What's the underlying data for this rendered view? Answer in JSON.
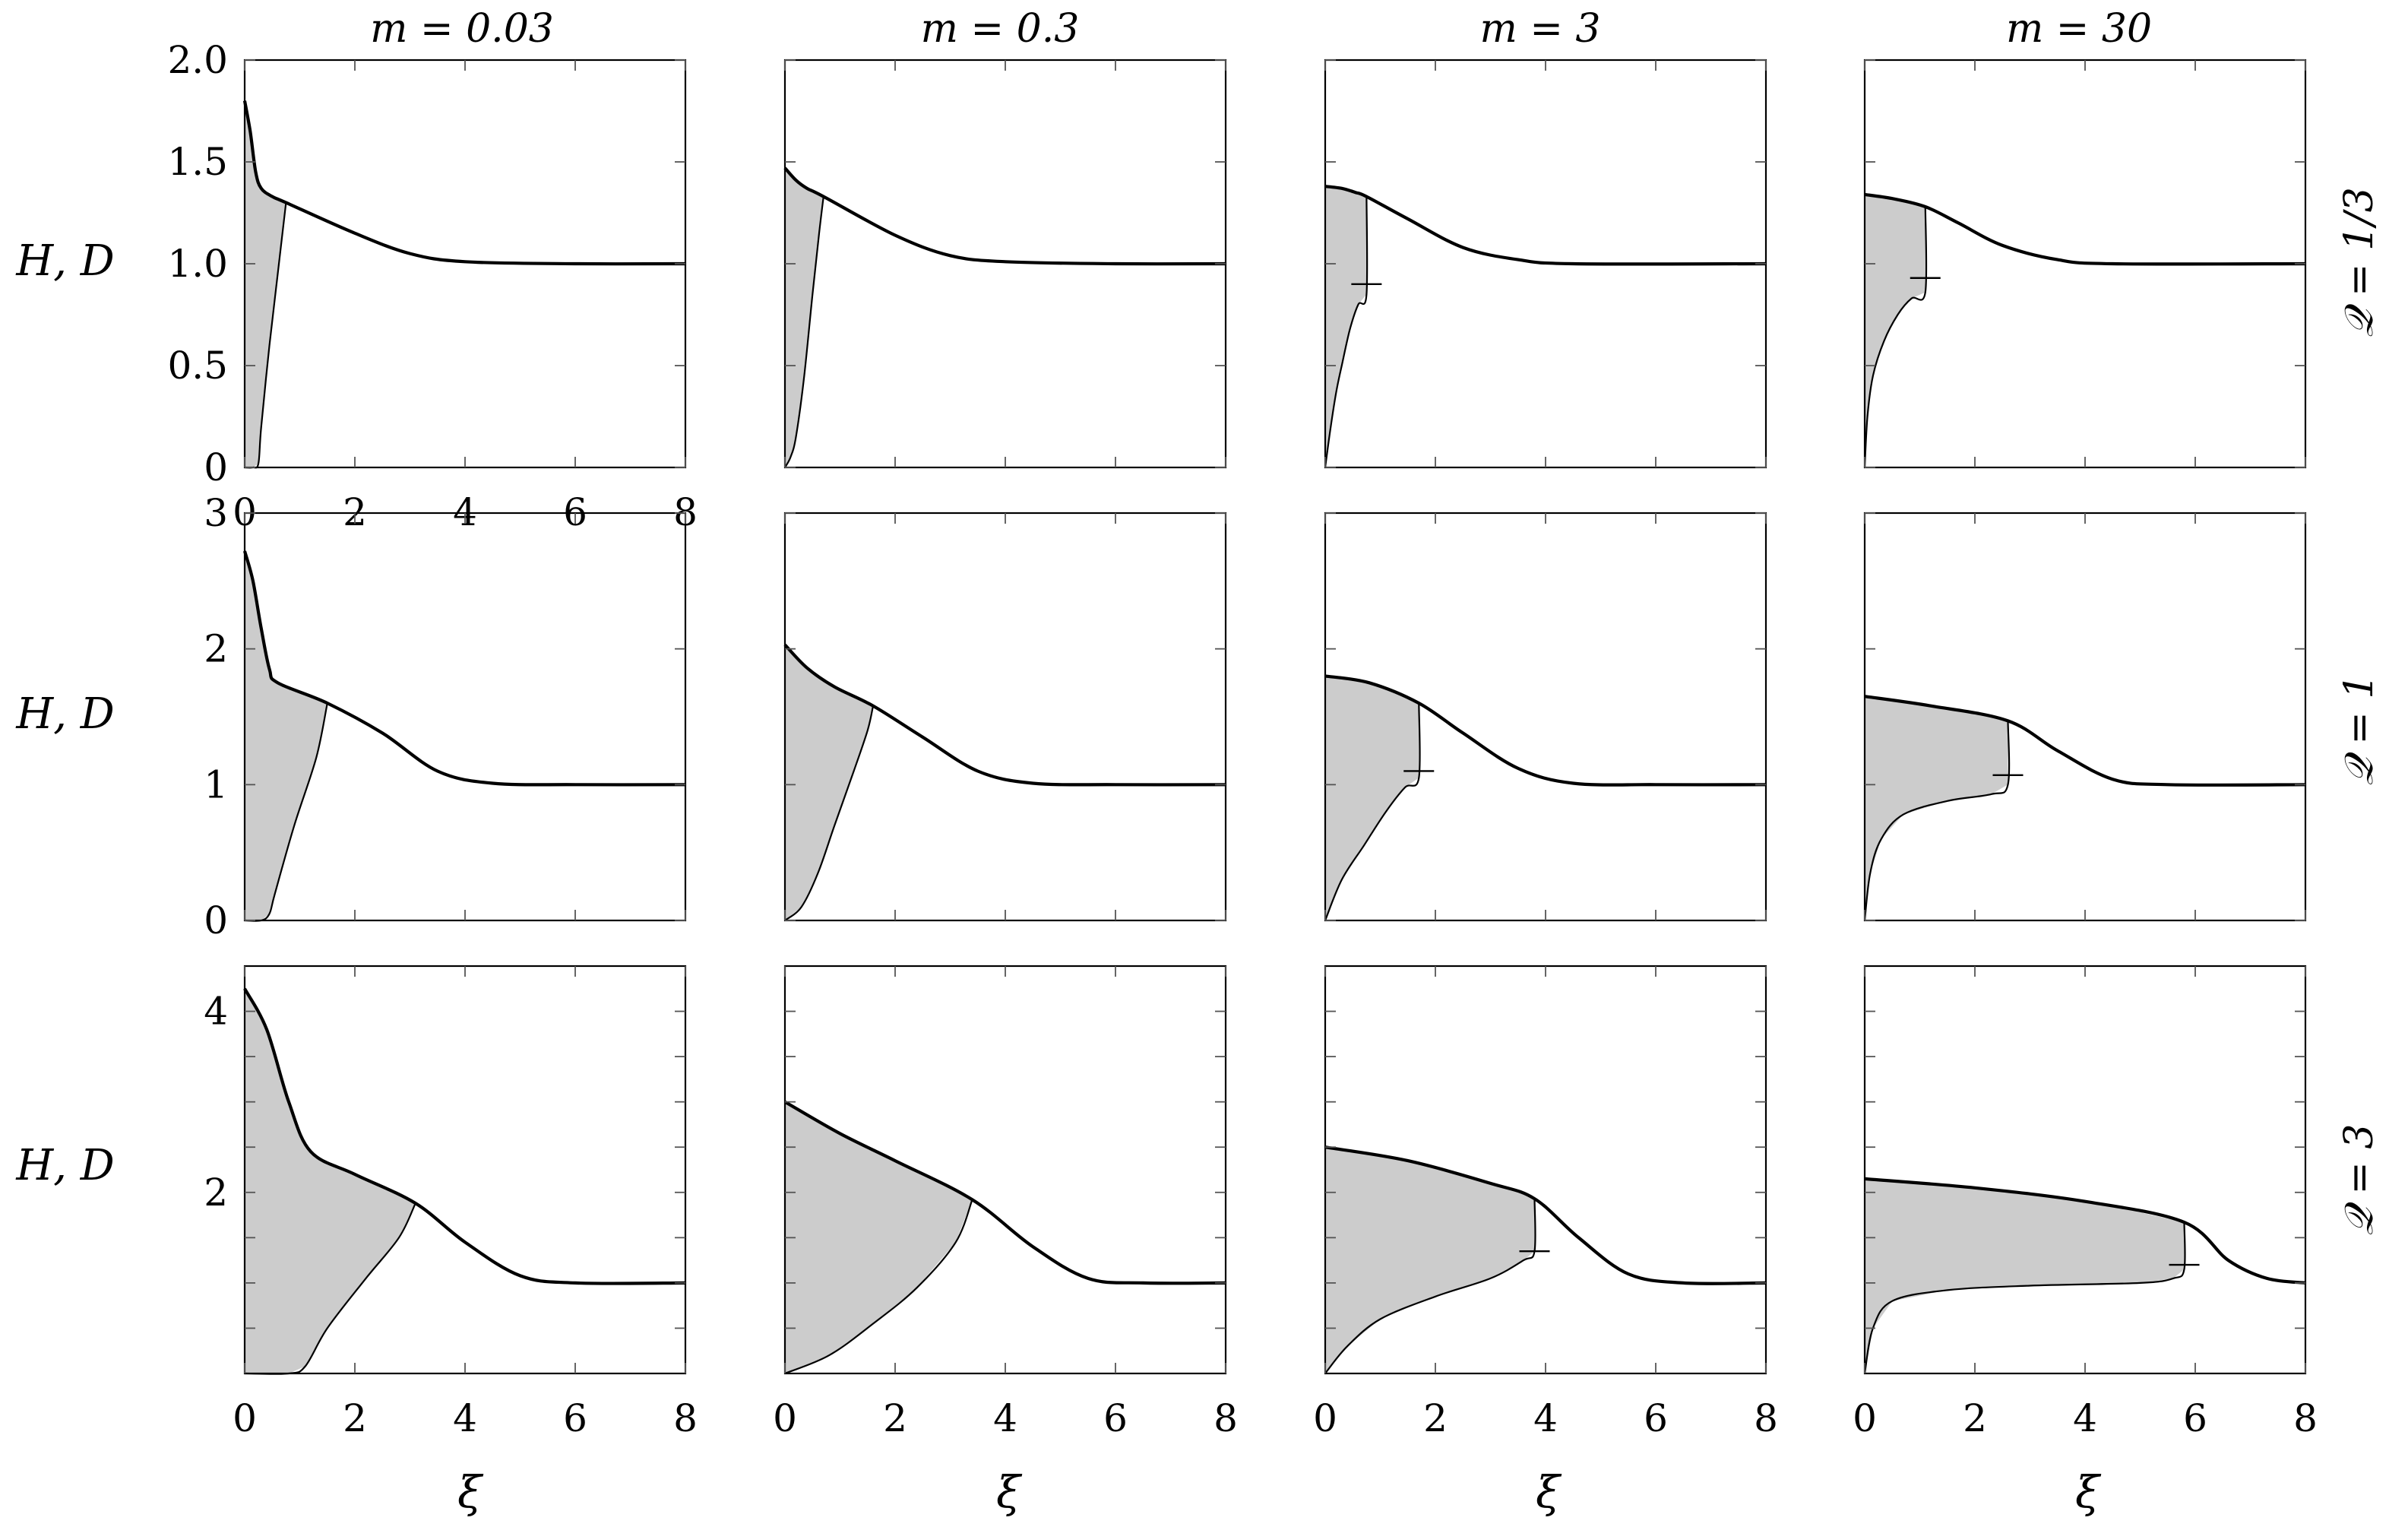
{
  "figure": {
    "column_titles": [
      "m = 0.03",
      "m = 0.3",
      "m = 3",
      "m = 30"
    ],
    "row_labels": [
      "𝒬 = 1/3",
      "𝒬 = 1",
      "𝒬 = 3"
    ],
    "y_axis_label": "H, D",
    "x_axis_label": "ξ",
    "colors": {
      "line": "#000000",
      "fill": "#cccccc",
      "frame": "#000000"
    }
  },
  "chart_data": [
    {
      "type": "area",
      "m": "0.03",
      "Q": "1/3",
      "ylim": [
        0,
        2
      ],
      "xlim": [
        0,
        8
      ],
      "y_ticks": [
        0,
        0.5,
        1,
        1.5,
        2
      ],
      "y_tick_labels": [
        "0",
        "0.5",
        "1.0",
        "1.5",
        "2.0"
      ],
      "x_ticks": [
        0,
        2,
        4,
        6,
        8
      ],
      "x_tick_labels": [
        "0",
        "2",
        "4",
        "6",
        "8"
      ],
      "H": [
        [
          0,
          1.8
        ],
        [
          0.1,
          1.65
        ],
        [
          0.2,
          1.45
        ],
        [
          0.3,
          1.37
        ],
        [
          0.5,
          1.33
        ],
        [
          0.75,
          1.3
        ],
        [
          2,
          1.15
        ],
        [
          3,
          1.05
        ],
        [
          4,
          1.01
        ],
        [
          6,
          1.0
        ],
        [
          8,
          1.0
        ]
      ],
      "D": [
        [
          0,
          0
        ],
        [
          0.15,
          0
        ],
        [
          0.25,
          0.02
        ],
        [
          0.3,
          0.2
        ],
        [
          0.45,
          0.6
        ],
        [
          0.6,
          0.95
        ],
        [
          0.75,
          1.3
        ]
      ],
      "shock": null
    },
    {
      "type": "area",
      "m": "0.3",
      "Q": "1/3",
      "ylim": [
        0,
        2
      ],
      "xlim": [
        0,
        8
      ],
      "y_ticks": [
        0,
        0.5,
        1,
        1.5,
        2
      ],
      "y_tick_labels": [],
      "x_ticks": [
        0,
        2,
        4,
        6,
        8
      ],
      "x_tick_labels": [],
      "H": [
        [
          0,
          1.47
        ],
        [
          0.2,
          1.41
        ],
        [
          0.4,
          1.37
        ],
        [
          0.7,
          1.33
        ],
        [
          2,
          1.14
        ],
        [
          3,
          1.04
        ],
        [
          4,
          1.01
        ],
        [
          6,
          1.0
        ],
        [
          8,
          1.0
        ]
      ],
      "D": [
        [
          0,
          0
        ],
        [
          0.1,
          0.05
        ],
        [
          0.2,
          0.15
        ],
        [
          0.35,
          0.45
        ],
        [
          0.5,
          0.85
        ],
        [
          0.62,
          1.15
        ],
        [
          0.7,
          1.33
        ]
      ],
      "shock": null
    },
    {
      "type": "area",
      "m": "3",
      "Q": "1/3",
      "ylim": [
        0,
        2
      ],
      "xlim": [
        0,
        8
      ],
      "y_ticks": [
        0,
        0.5,
        1,
        1.5,
        2
      ],
      "y_tick_labels": [],
      "x_ticks": [
        0,
        2,
        4,
        6,
        8
      ],
      "x_tick_labels": [],
      "H": [
        [
          0,
          1.38
        ],
        [
          0.3,
          1.37
        ],
        [
          0.55,
          1.35
        ],
        [
          0.75,
          1.33
        ],
        [
          1.5,
          1.22
        ],
        [
          2.5,
          1.08
        ],
        [
          3.5,
          1.02
        ],
        [
          4.5,
          1.0
        ],
        [
          8,
          1.0
        ]
      ],
      "D": [
        [
          0,
          0
        ],
        [
          0.1,
          0.2
        ],
        [
          0.2,
          0.37
        ],
        [
          0.3,
          0.5
        ],
        [
          0.45,
          0.68
        ],
        [
          0.6,
          0.8
        ],
        [
          0.75,
          0.85
        ],
        [
          0.75,
          1.33
        ]
      ],
      "shock": [
        0.75,
        0.9
      ]
    },
    {
      "type": "area",
      "m": "30",
      "Q": "1/3",
      "ylim": [
        0,
        2
      ],
      "xlim": [
        0,
        8
      ],
      "y_ticks": [
        0,
        0.5,
        1,
        1.5,
        2
      ],
      "y_tick_labels": [],
      "x_ticks": [
        0,
        2,
        4,
        6,
        8
      ],
      "x_tick_labels": [],
      "H": [
        [
          0,
          1.34
        ],
        [
          0.5,
          1.32
        ],
        [
          1.1,
          1.28
        ],
        [
          1.7,
          1.2
        ],
        [
          2.5,
          1.09
        ],
        [
          3.5,
          1.02
        ],
        [
          4.5,
          1.0
        ],
        [
          8,
          1.0
        ]
      ],
      "D": [
        [
          0,
          0
        ],
        [
          0.05,
          0.25
        ],
        [
          0.15,
          0.45
        ],
        [
          0.35,
          0.62
        ],
        [
          0.6,
          0.75
        ],
        [
          0.85,
          0.83
        ],
        [
          1.1,
          0.86
        ],
        [
          1.1,
          1.28
        ]
      ],
      "shock": [
        1.1,
        0.93
      ]
    },
    {
      "type": "area",
      "m": "0.03",
      "Q": "1",
      "ylim": [
        0,
        3
      ],
      "xlim": [
        0,
        8
      ],
      "y_ticks": [
        0,
        1,
        2,
        3
      ],
      "y_tick_labels": [
        "0",
        "1",
        "2",
        "3"
      ],
      "x_ticks": [
        0,
        2,
        4,
        6,
        8
      ],
      "x_tick_labels": [],
      "H": [
        [
          0,
          2.72
        ],
        [
          0.15,
          2.5
        ],
        [
          0.3,
          2.15
        ],
        [
          0.45,
          1.85
        ],
        [
          0.6,
          1.75
        ],
        [
          1.5,
          1.6
        ],
        [
          2.5,
          1.38
        ],
        [
          3.5,
          1.1
        ],
        [
          4.5,
          1.01
        ],
        [
          6,
          1.0
        ],
        [
          8,
          1.0
        ]
      ],
      "D": [
        [
          0,
          0
        ],
        [
          0.3,
          0
        ],
        [
          0.45,
          0.05
        ],
        [
          0.55,
          0.2
        ],
        [
          0.9,
          0.7
        ],
        [
          1.3,
          1.2
        ],
        [
          1.5,
          1.6
        ]
      ],
      "shock": null
    },
    {
      "type": "area",
      "m": "0.3",
      "Q": "1",
      "ylim": [
        0,
        3
      ],
      "xlim": [
        0,
        8
      ],
      "y_ticks": [
        0,
        1,
        2,
        3
      ],
      "y_tick_labels": [],
      "x_ticks": [
        0,
        2,
        4,
        6,
        8
      ],
      "x_tick_labels": [],
      "H": [
        [
          0,
          2.03
        ],
        [
          0.4,
          1.86
        ],
        [
          0.9,
          1.72
        ],
        [
          1.6,
          1.58
        ],
        [
          2.5,
          1.35
        ],
        [
          3.5,
          1.1
        ],
        [
          4.5,
          1.01
        ],
        [
          6,
          1.0
        ],
        [
          8,
          1.0
        ]
      ],
      "D": [
        [
          0,
          0
        ],
        [
          0.3,
          0.1
        ],
        [
          0.6,
          0.35
        ],
        [
          0.9,
          0.7
        ],
        [
          1.25,
          1.1
        ],
        [
          1.5,
          1.4
        ],
        [
          1.6,
          1.58
        ]
      ],
      "shock": null
    },
    {
      "type": "area",
      "m": "3",
      "Q": "1",
      "ylim": [
        0,
        3
      ],
      "xlim": [
        0,
        8
      ],
      "y_ticks": [
        0,
        1,
        2,
        3
      ],
      "y_tick_labels": [],
      "x_ticks": [
        0,
        2,
        4,
        6,
        8
      ],
      "x_tick_labels": [],
      "H": [
        [
          0,
          1.8
        ],
        [
          0.8,
          1.75
        ],
        [
          1.7,
          1.6
        ],
        [
          2.5,
          1.38
        ],
        [
          3.5,
          1.12
        ],
        [
          4.5,
          1.01
        ],
        [
          6,
          1.0
        ],
        [
          8,
          1.0
        ]
      ],
      "D": [
        [
          0,
          0
        ],
        [
          0.3,
          0.3
        ],
        [
          0.7,
          0.55
        ],
        [
          1.1,
          0.8
        ],
        [
          1.45,
          0.98
        ],
        [
          1.7,
          1.05
        ],
        [
          1.7,
          1.6
        ]
      ],
      "shock": [
        1.7,
        1.1
      ]
    },
    {
      "type": "area",
      "m": "30",
      "Q": "1",
      "ylim": [
        0,
        3
      ],
      "xlim": [
        0,
        8
      ],
      "y_ticks": [
        0,
        1,
        2,
        3
      ],
      "y_tick_labels": [],
      "x_ticks": [
        0,
        2,
        4,
        6,
        8
      ],
      "x_tick_labels": [],
      "H": [
        [
          0,
          1.65
        ],
        [
          1.2,
          1.58
        ],
        [
          2.6,
          1.47
        ],
        [
          3.5,
          1.25
        ],
        [
          4.5,
          1.04
        ],
        [
          5.5,
          1.0
        ],
        [
          8,
          1.0
        ]
      ],
      "D": [
        [
          0,
          0
        ],
        [
          0.1,
          0.35
        ],
        [
          0.3,
          0.6
        ],
        [
          0.7,
          0.78
        ],
        [
          1.5,
          0.88
        ],
        [
          2.3,
          0.93
        ],
        [
          2.6,
          1.0
        ],
        [
          2.6,
          1.47
        ]
      ],
      "shock": [
        2.6,
        1.07
      ]
    },
    {
      "type": "area",
      "m": "0.03",
      "Q": "3",
      "ylim": [
        0,
        4.5
      ],
      "xlim": [
        0,
        8
      ],
      "y_ticks": [
        0.5,
        1,
        1.5,
        2,
        2.5,
        3,
        3.5,
        4
      ],
      "y_tick_labels": [
        "",
        "",
        "",
        "2",
        "",
        "",
        "",
        "4"
      ],
      "x_ticks": [
        0,
        2,
        4,
        6,
        8
      ],
      "x_tick_labels": [
        "0",
        "2",
        "4",
        "6",
        "8"
      ],
      "H": [
        [
          0,
          4.25
        ],
        [
          0.4,
          3.8
        ],
        [
          0.8,
          3.0
        ],
        [
          1.2,
          2.45
        ],
        [
          2,
          2.2
        ],
        [
          3.1,
          1.88
        ],
        [
          4,
          1.45
        ],
        [
          5,
          1.08
        ],
        [
          6,
          1.0
        ],
        [
          8,
          1.0
        ]
      ],
      "D": [
        [
          0,
          0
        ],
        [
          0.8,
          0
        ],
        [
          1.1,
          0.08
        ],
        [
          1.5,
          0.5
        ],
        [
          2.2,
          1.05
        ],
        [
          2.8,
          1.5
        ],
        [
          3.1,
          1.88
        ]
      ],
      "shock": null
    },
    {
      "type": "area",
      "m": "0.3",
      "Q": "3",
      "ylim": [
        0,
        4.5
      ],
      "xlim": [
        0,
        8
      ],
      "y_ticks": [
        0.5,
        1,
        1.5,
        2,
        2.5,
        3,
        3.5,
        4
      ],
      "y_tick_labels": [],
      "x_ticks": [
        0,
        2,
        4,
        6,
        8
      ],
      "x_tick_labels": [
        "0",
        "2",
        "4",
        "6",
        "8"
      ],
      "H": [
        [
          0,
          3.0
        ],
        [
          1,
          2.65
        ],
        [
          2,
          2.35
        ],
        [
          3.4,
          1.92
        ],
        [
          4.5,
          1.4
        ],
        [
          5.5,
          1.05
        ],
        [
          6.5,
          1.0
        ],
        [
          8,
          1.0
        ]
      ],
      "D": [
        [
          0,
          0
        ],
        [
          0.8,
          0.2
        ],
        [
          1.6,
          0.55
        ],
        [
          2.4,
          0.95
        ],
        [
          3.1,
          1.45
        ],
        [
          3.4,
          1.92
        ]
      ],
      "shock": null
    },
    {
      "type": "area",
      "m": "3",
      "Q": "3",
      "ylim": [
        0,
        4.5
      ],
      "xlim": [
        0,
        8
      ],
      "y_ticks": [
        0.5,
        1,
        1.5,
        2,
        2.5,
        3,
        3.5,
        4
      ],
      "y_tick_labels": [],
      "x_ticks": [
        0,
        2,
        4,
        6,
        8
      ],
      "x_tick_labels": [
        "0",
        "2",
        "4",
        "6",
        "8"
      ],
      "H": [
        [
          0,
          2.5
        ],
        [
          1.5,
          2.35
        ],
        [
          3,
          2.1
        ],
        [
          3.8,
          1.93
        ],
        [
          4.6,
          1.5
        ],
        [
          5.5,
          1.1
        ],
        [
          6.5,
          1.0
        ],
        [
          8,
          1.0
        ]
      ],
      "D": [
        [
          0,
          0
        ],
        [
          0.4,
          0.3
        ],
        [
          1,
          0.6
        ],
        [
          2,
          0.85
        ],
        [
          3,
          1.05
        ],
        [
          3.6,
          1.25
        ],
        [
          3.8,
          1.35
        ],
        [
          3.8,
          1.93
        ]
      ],
      "shock": [
        3.8,
        1.35
      ]
    },
    {
      "type": "area",
      "m": "30",
      "Q": "3",
      "ylim": [
        0,
        4.5
      ],
      "xlim": [
        0,
        8
      ],
      "y_ticks": [
        0.5,
        1,
        1.5,
        2,
        2.5,
        3,
        3.5,
        4
      ],
      "y_tick_labels": [],
      "x_ticks": [
        0,
        2,
        4,
        6,
        8
      ],
      "x_tick_labels": [
        "0",
        "2",
        "4",
        "6",
        "8"
      ],
      "H": [
        [
          0,
          2.15
        ],
        [
          2,
          2.05
        ],
        [
          4,
          1.9
        ],
        [
          5.8,
          1.67
        ],
        [
          6.6,
          1.25
        ],
        [
          7.3,
          1.05
        ],
        [
          8,
          1.0
        ]
      ],
      "D": [
        [
          0,
          0
        ],
        [
          0.15,
          0.5
        ],
        [
          0.5,
          0.8
        ],
        [
          1.5,
          0.92
        ],
        [
          3,
          0.97
        ],
        [
          5,
          1.0
        ],
        [
          5.6,
          1.05
        ],
        [
          5.8,
          1.15
        ],
        [
          5.8,
          1.67
        ]
      ],
      "shock": [
        5.8,
        1.2
      ]
    }
  ]
}
